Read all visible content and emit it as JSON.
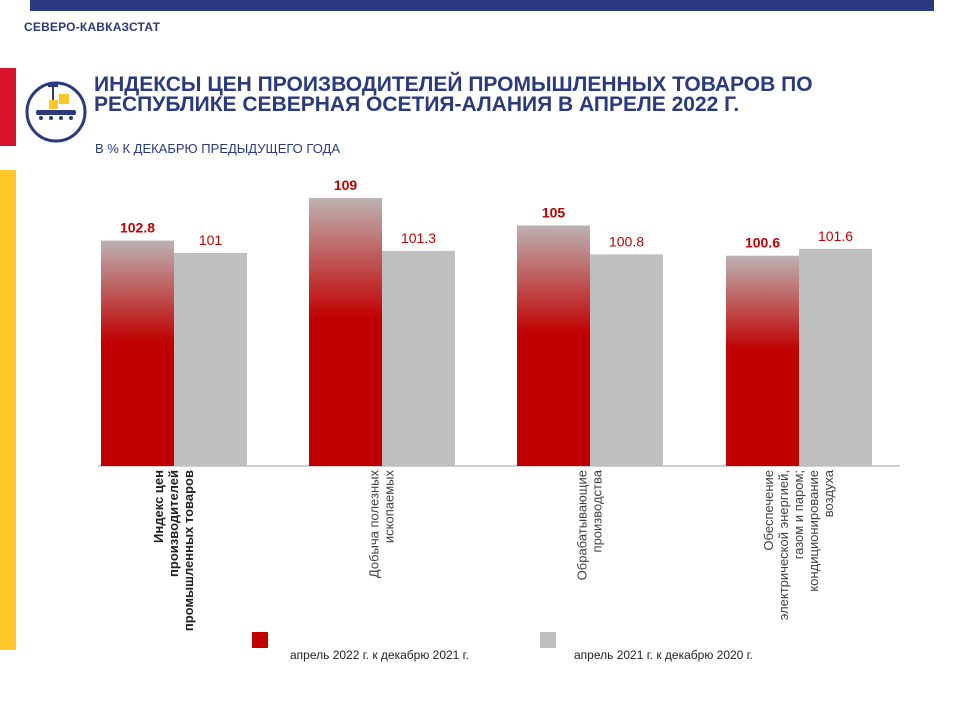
{
  "header": {
    "org": "СЕВЕРО-КАВКАЗСТАТ",
    "title": "ИНДЕКСЫ ЦЕН ПРОИЗВОДИТЕЛЕЙ ПРОМЫШЛЕННЫХ ТОВАРОВ ПО РЕСПУБЛИКЕ СЕВЕРНАЯ ОСЕТИЯ-АЛАНИЯ В  АПРЕЛЕ 2022 Г.",
    "subtitle": "В % К ДЕКАБРЮ ПРЕДЫДУЩЕГО ГОДА",
    "logo_icon": "factory-conveyor-icon"
  },
  "colors": {
    "brand_blue": "#2b3a7e",
    "accent_red": "#d7142b",
    "accent_yellow": "#ffc62a",
    "series_2022": "#c00000",
    "series_2021": "#bfbfbf"
  },
  "chart_data": {
    "type": "bar",
    "title": "",
    "xlabel": "",
    "ylabel": "",
    "categories": [
      "Индекс цен производителей промышленных товаров",
      "Добыча полезных ископаемых",
      "Обрабатывающие производства",
      "Обеспечение электрической энергией, газом и паром; кондиционирование воздуха"
    ],
    "category_lines": [
      [
        "Индекс цен",
        "производителей",
        "промышленных товаров"
      ],
      [
        "Добыча полезных",
        "ископаемых"
      ],
      [
        "Обрабатывающие",
        "производства"
      ],
      [
        "Обеспечение",
        "электрической энергией,",
        "газом и паром;",
        "кондиционирование",
        "воздуха"
      ]
    ],
    "category_bold": [
      true,
      false,
      false,
      false
    ],
    "series": [
      {
        "name": "апрель  2022 г. к декабрю  2021 г.",
        "values": [
          102.8,
          109,
          105,
          100.6
        ],
        "labels": [
          "102.8",
          "109",
          "105",
          "100.6"
        ]
      },
      {
        "name": "апрель  2021 г. к декабрю 2020 г.",
        "values": [
          101,
          101.3,
          100.8,
          101.6
        ],
        "labels": [
          "101",
          "101.3",
          "100.8",
          "101.6"
        ]
      }
    ],
    "ylim": [
      70,
      110
    ],
    "grid": false,
    "legend_position": "bottom"
  }
}
